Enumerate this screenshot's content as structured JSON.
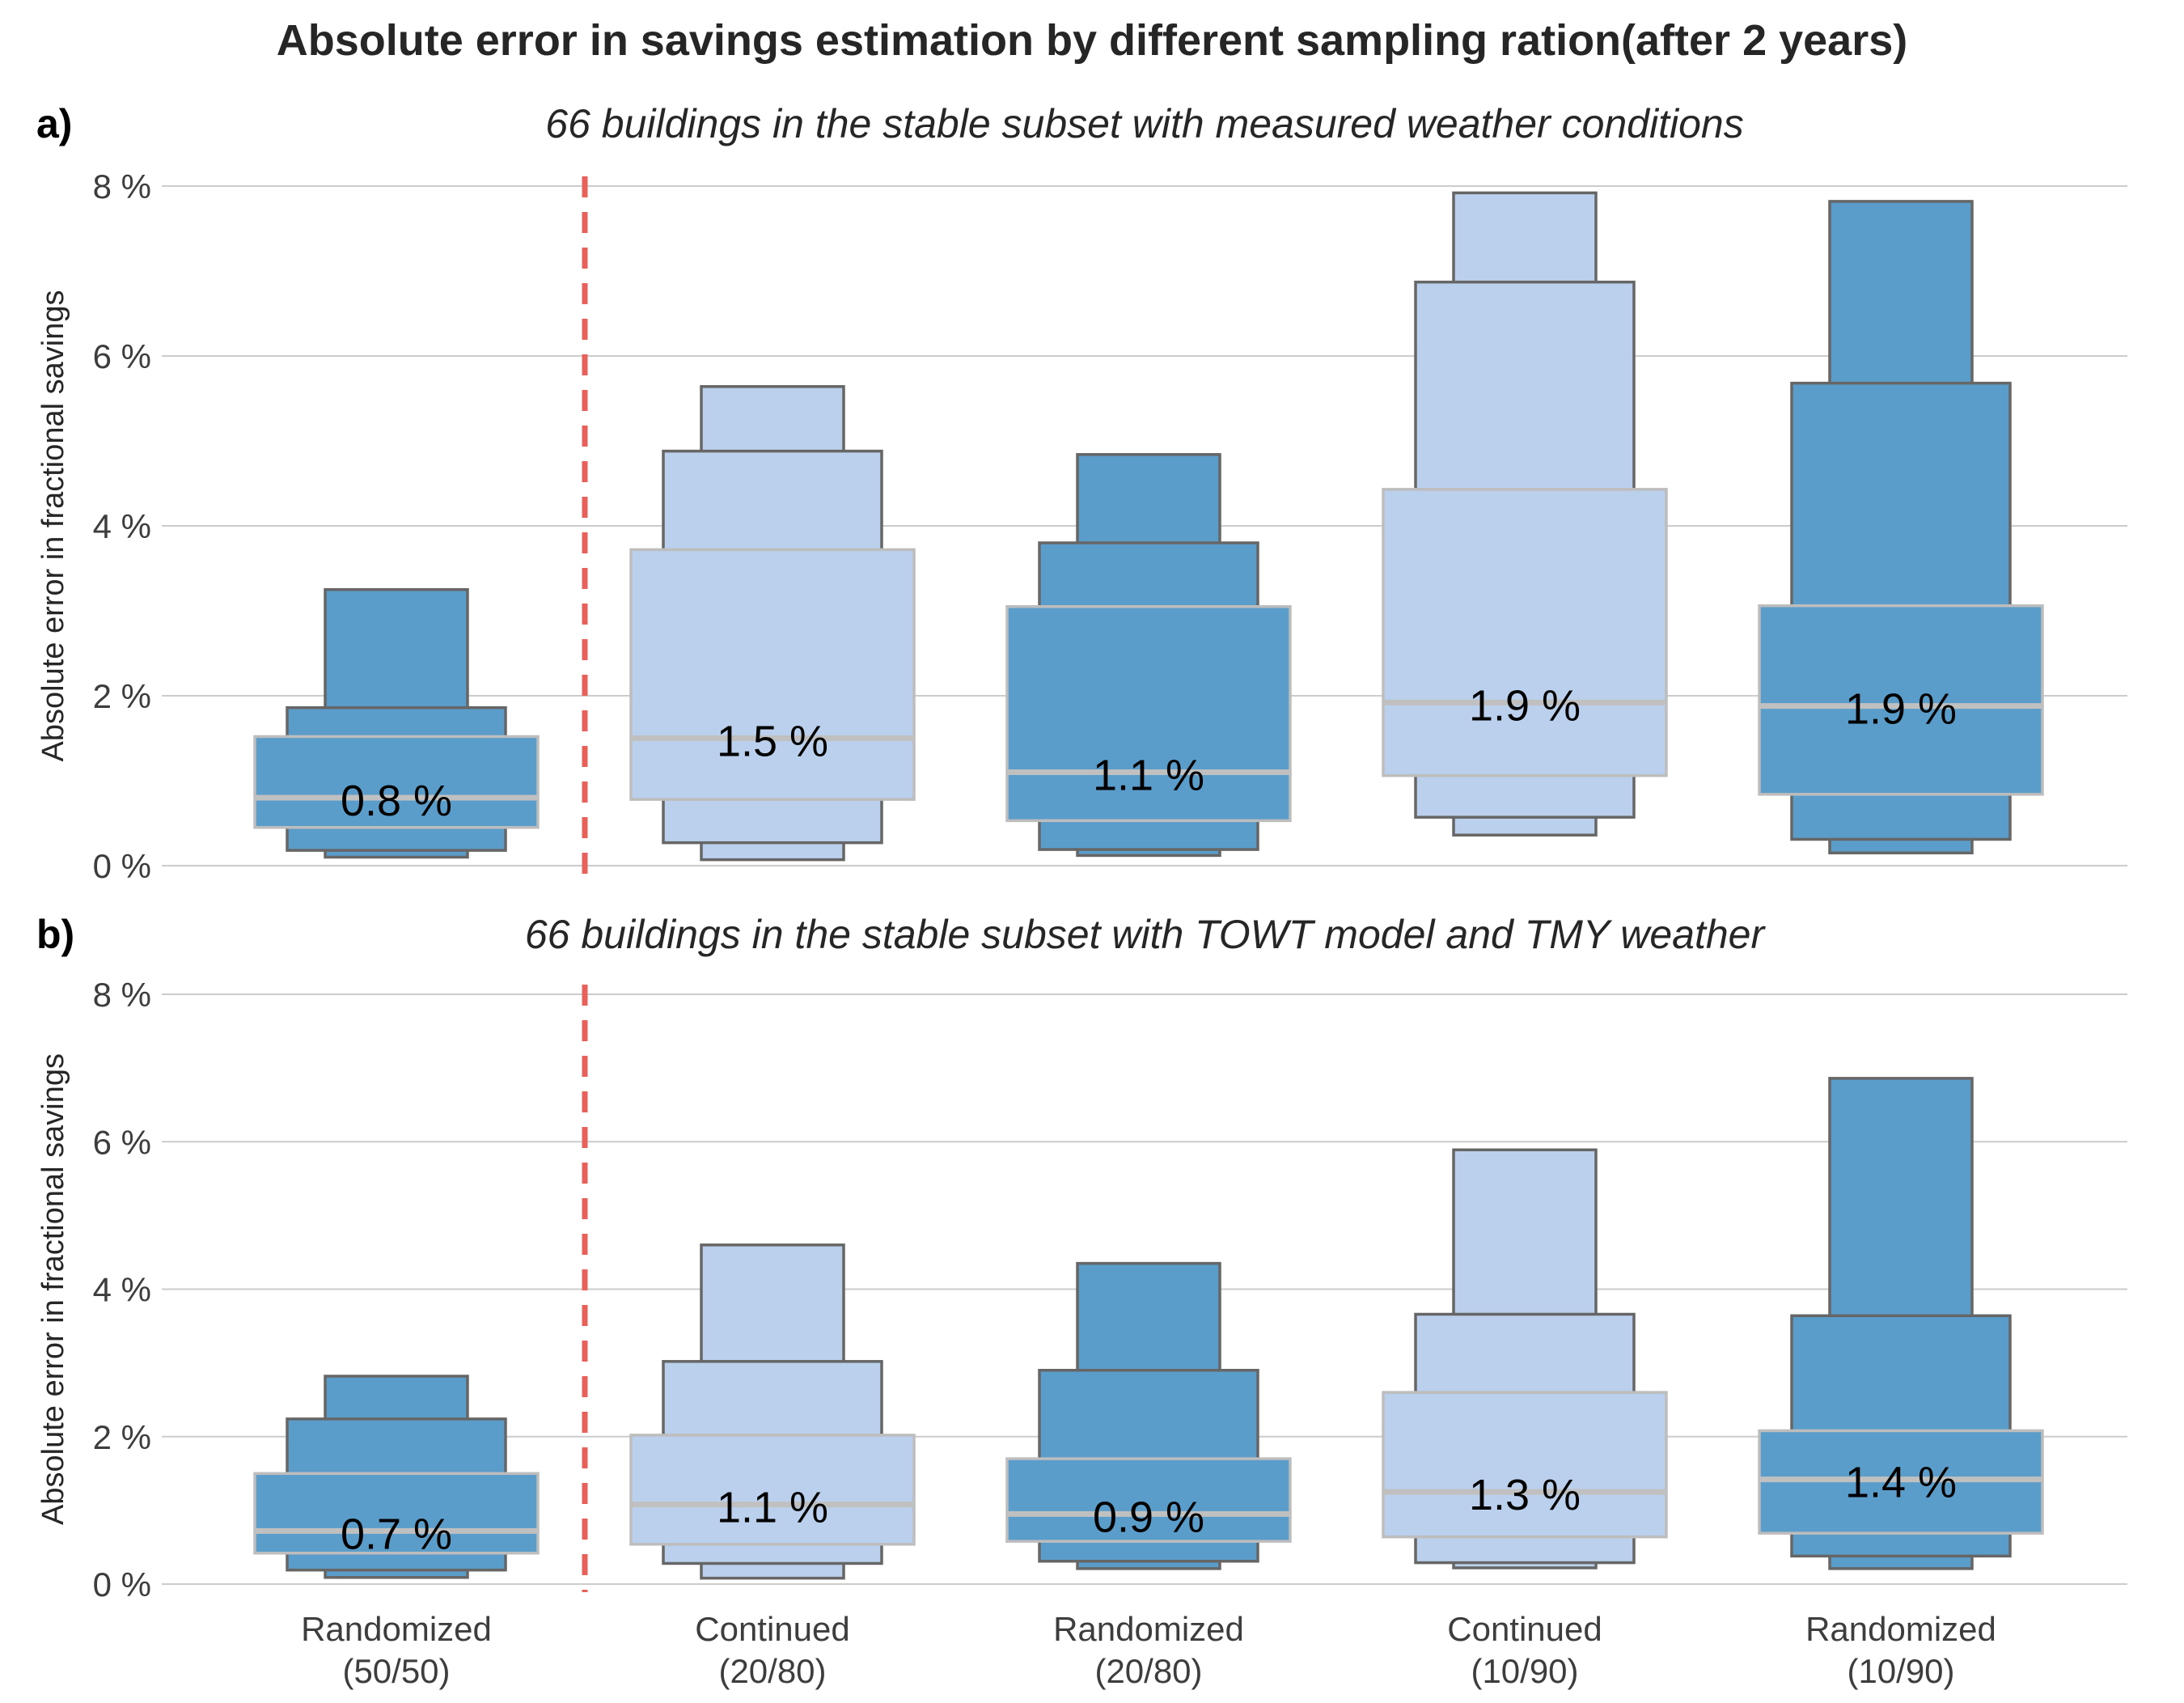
{
  "chart_data": {
    "type": "boxen",
    "title": "Absolute error in savings estimation by different sampling ration(after 2 years)",
    "categories": [
      "Randomized\n(50/50)",
      "Continued\n(20/80)",
      "Randomized\n(20/80)",
      "Continued\n(10/90)",
      "Randomized\n(10/90)"
    ],
    "ylabel": "Absolute error in fractional savings",
    "ylim": [
      0,
      8
    ],
    "yticks": [
      "0 %",
      "2 %",
      "4 %",
      "6 %",
      "8 %"
    ],
    "grid": true,
    "colors": {
      "randomized": "#5a9dcb",
      "continued": "#bad0ec",
      "divider": "#e8605a"
    },
    "divider_after_category": 0,
    "panels": [
      {
        "letter": "a)",
        "subtitle": "66 buildings in the stable subset with measured weather conditions",
        "boxes": [
          {
            "group": "randomized",
            "median": 0.8,
            "median_label": "0.8 %",
            "levels": [
              {
                "lo": 0.45,
                "hi": 1.52
              },
              {
                "lo": 0.18,
                "hi": 1.86
              },
              {
                "lo": 0.1,
                "hi": 3.25
              }
            ]
          },
          {
            "group": "continued",
            "median": 1.5,
            "median_label": "1.5 %",
            "levels": [
              {
                "lo": 0.78,
                "hi": 3.72
              },
              {
                "lo": 0.27,
                "hi": 4.88
              },
              {
                "lo": 0.07,
                "hi": 5.64
              }
            ]
          },
          {
            "group": "randomized",
            "median": 1.1,
            "median_label": "1.1 %",
            "levels": [
              {
                "lo": 0.53,
                "hi": 3.05
              },
              {
                "lo": 0.19,
                "hi": 3.8
              },
              {
                "lo": 0.12,
                "hi": 4.84
              }
            ]
          },
          {
            "group": "continued",
            "median": 1.92,
            "median_label": "1.9 %",
            "levels": [
              {
                "lo": 1.06,
                "hi": 4.43
              },
              {
                "lo": 0.57,
                "hi": 6.87
              },
              {
                "lo": 0.36,
                "hi": 7.92
              }
            ]
          },
          {
            "group": "randomized",
            "median": 1.88,
            "median_label": "1.9 %",
            "levels": [
              {
                "lo": 0.84,
                "hi": 3.06
              },
              {
                "lo": 0.31,
                "hi": 5.68
              },
              {
                "lo": 0.15,
                "hi": 7.82
              }
            ]
          }
        ]
      },
      {
        "letter": "b)",
        "subtitle": "66 buildings in the stable subset with TOWT model and TMY weather",
        "boxes": [
          {
            "group": "randomized",
            "median": 0.72,
            "median_label": "0.7 %",
            "levels": [
              {
                "lo": 0.42,
                "hi": 1.5
              },
              {
                "lo": 0.19,
                "hi": 2.24
              },
              {
                "lo": 0.09,
                "hi": 2.82
              }
            ]
          },
          {
            "group": "continued",
            "median": 1.08,
            "median_label": "1.1 %",
            "levels": [
              {
                "lo": 0.54,
                "hi": 2.02
              },
              {
                "lo": 0.28,
                "hi": 3.02
              },
              {
                "lo": 0.08,
                "hi": 4.6
              }
            ]
          },
          {
            "group": "randomized",
            "median": 0.95,
            "median_label": "0.9 %",
            "levels": [
              {
                "lo": 0.58,
                "hi": 1.7
              },
              {
                "lo": 0.31,
                "hi": 2.9
              },
              {
                "lo": 0.21,
                "hi": 4.35
              }
            ]
          },
          {
            "group": "continued",
            "median": 1.25,
            "median_label": "1.3 %",
            "levels": [
              {
                "lo": 0.64,
                "hi": 2.6
              },
              {
                "lo": 0.29,
                "hi": 3.66
              },
              {
                "lo": 0.22,
                "hi": 5.89
              }
            ]
          },
          {
            "group": "randomized",
            "median": 1.42,
            "median_label": "1.4 %",
            "levels": [
              {
                "lo": 0.69,
                "hi": 2.08
              },
              {
                "lo": 0.38,
                "hi": 3.64
              },
              {
                "lo": 0.21,
                "hi": 6.86
              }
            ]
          }
        ]
      }
    ]
  }
}
